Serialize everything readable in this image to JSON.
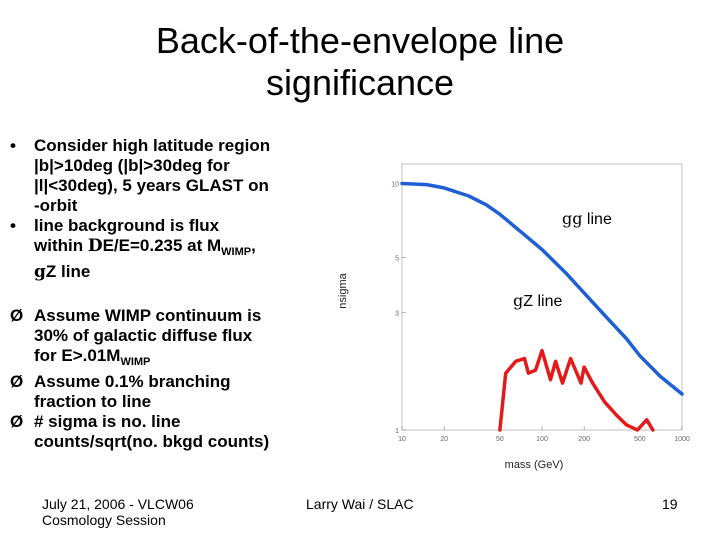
{
  "slide": {
    "title_line1": "Back-of-the-envelope line",
    "title_line2": "significance",
    "bullets": [
      {
        "marker": "•",
        "lines": [
          "Consider high latitude region",
          "|b|>10deg (|b|>30deg for",
          "|l|<30deg), 5 years GLAST on",
          "-orbit"
        ]
      },
      {
        "marker": "•",
        "l1": "line background is flux",
        "l2a": "within ",
        "l2sym": "D",
        "l2b": "E/E=0.235 at M",
        "l2sub": "WIMP",
        "l2c": ",",
        "l3sym": "g",
        "l3b": "Z line"
      }
    ],
    "arrows": [
      {
        "marker": "Ø",
        "l1": "Assume WIMP continuum is",
        "l2": "30% of galactic diffuse flux",
        "l3a": "for E>.01M",
        "l3sub": "WIMP"
      },
      {
        "marker": "Ø",
        "lines": [
          "Assume 0.1% branching",
          "fraction to line"
        ]
      },
      {
        "marker": "Ø",
        "lines": [
          "# sigma is no. line",
          "counts/sqrt(no. bkgd counts)"
        ]
      }
    ],
    "footer": {
      "left_line1": "July 21, 2006 - VLCW06",
      "left_line2": "Cosmology Session",
      "center": "Larry Wai / SLAC",
      "page": "19"
    }
  },
  "chart_data": {
    "type": "line",
    "xlabel": "mass (GeV)",
    "ylabel": "nsigma",
    "x_scale": "log",
    "y_scale": "log",
    "xlim": [
      10,
      1000
    ],
    "ylim": [
      1,
      12
    ],
    "x_ticks": [
      "10",
      "20",
      "50",
      "100",
      "200",
      "500",
      "1000"
    ],
    "y_ticks": [
      "1",
      "3",
      "5",
      "10"
    ],
    "series": [
      {
        "name": "γγ line",
        "label_sym": "gg",
        "label_text": " line",
        "color": "#1f5fd6",
        "x": [
          10,
          15,
          20,
          30,
          40,
          50,
          70,
          100,
          150,
          200,
          300,
          400,
          500,
          700,
          1000
        ],
        "y": [
          10,
          9.9,
          9.6,
          8.9,
          8.2,
          7.5,
          6.4,
          5.4,
          4.3,
          3.6,
          2.8,
          2.35,
          2.0,
          1.65,
          1.4
        ]
      },
      {
        "name": "γZ line",
        "label_sym": "g",
        "label_text": "Z line",
        "color": "#e31a1a",
        "x": [
          50,
          55,
          65,
          75,
          80,
          90,
          100,
          115,
          125,
          140,
          160,
          190,
          200,
          230,
          280,
          340,
          400,
          480,
          560,
          620
        ],
        "y": [
          1.0,
          1.7,
          1.9,
          1.95,
          1.7,
          1.75,
          2.1,
          1.6,
          1.9,
          1.55,
          1.95,
          1.55,
          1.8,
          1.55,
          1.3,
          1.15,
          1.05,
          1.0,
          1.1,
          1.0
        ]
      }
    ]
  }
}
